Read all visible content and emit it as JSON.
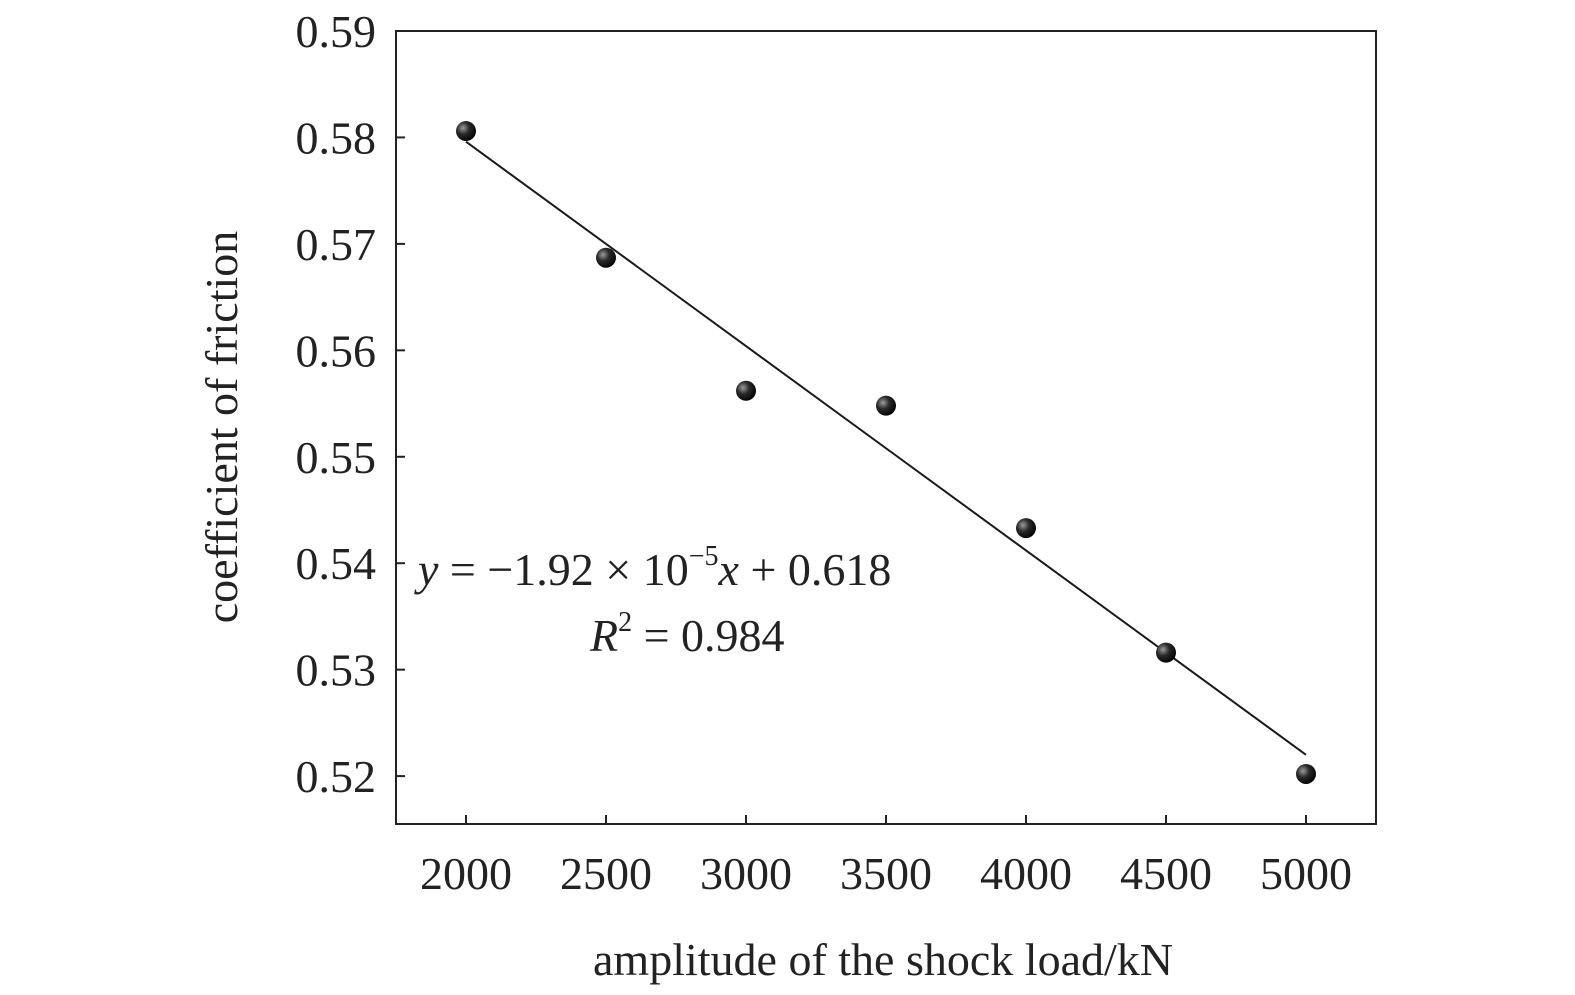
{
  "chart_data": {
    "type": "scatter",
    "xlabel": "amplitude of the shock load/kN",
    "ylabel": "coefficient of friction",
    "xlim": [
      1750,
      5250
    ],
    "ylim": [
      0.5155,
      0.59
    ],
    "x_ticks": [
      "2000",
      "2500",
      "3000",
      "3500",
      "4000",
      "4500",
      "5000"
    ],
    "y_ticks": [
      "0.52",
      "0.53",
      "0.54",
      "0.55",
      "0.56",
      "0.57",
      "0.58",
      "0.59"
    ],
    "grid": false,
    "legend": "none",
    "series": [
      {
        "type": "scatter",
        "marker": "sphere",
        "points": [
          {
            "x": 2000,
            "y": 0.5806
          },
          {
            "x": 2500,
            "y": 0.5687
          },
          {
            "x": 3000,
            "y": 0.5562
          },
          {
            "x": 3500,
            "y": 0.5548
          },
          {
            "x": 4000,
            "y": 0.5433
          },
          {
            "x": 4500,
            "y": 0.5316
          },
          {
            "x": 5000,
            "y": 0.5202
          }
        ]
      }
    ],
    "fit_line": {
      "x": [
        2000,
        5000
      ],
      "slope": -1.92e-05,
      "intercept": 0.618
    },
    "annotation": {
      "eq_y": "y",
      "eq_mid": " = −1.92 × 10",
      "eq_exp": "−5",
      "eq_x": "x",
      "eq_tail": " + 0.618",
      "r_R": "R",
      "r_exp": "2",
      "r_tail": " = 0.984"
    },
    "colors": {
      "marker": "#111111",
      "line": "#1a1a1a",
      "axes": "#222222"
    }
  }
}
